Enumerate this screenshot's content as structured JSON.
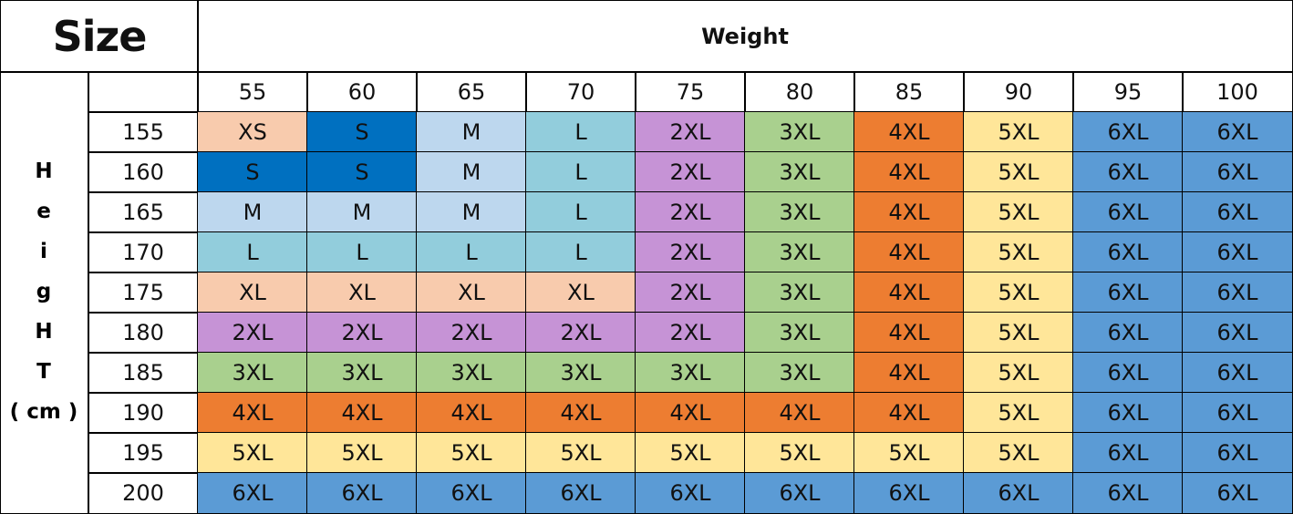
{
  "header": {
    "title": "Size",
    "weight_label": "Weight"
  },
  "height_label": [
    "H",
    "e",
    "i",
    "g",
    "H",
    "T",
    "( cm )"
  ],
  "size_colors": {
    "XS": "#f8cbad",
    "S": "#0070c0",
    "M": "#bdd7ee",
    "L": "#92cddc",
    "XL": "#f8cbad",
    "2XL": "#c693d6",
    "3XL": "#a9d08e",
    "4XL": "#ed7d31",
    "5XL": "#ffe699",
    "6XL": "#5b9bd5"
  },
  "table": {
    "weights": [
      55,
      60,
      65,
      70,
      75,
      80,
      85,
      90,
      95,
      100
    ],
    "rows": [
      {
        "height": 155,
        "sizes": [
          "XS",
          "S",
          "M",
          "L",
          "2XL",
          "3XL",
          "4XL",
          "5XL",
          "6XL",
          "6XL"
        ]
      },
      {
        "height": 160,
        "sizes": [
          "S",
          "S",
          "M",
          "L",
          "2XL",
          "3XL",
          "4XL",
          "5XL",
          "6XL",
          "6XL"
        ]
      },
      {
        "height": 165,
        "sizes": [
          "M",
          "M",
          "M",
          "L",
          "2XL",
          "3XL",
          "4XL",
          "5XL",
          "6XL",
          "6XL"
        ]
      },
      {
        "height": 170,
        "sizes": [
          "L",
          "L",
          "L",
          "L",
          "2XL",
          "3XL",
          "4XL",
          "5XL",
          "6XL",
          "6XL"
        ]
      },
      {
        "height": 175,
        "sizes": [
          "XL",
          "XL",
          "XL",
          "XL",
          "2XL",
          "3XL",
          "4XL",
          "5XL",
          "6XL",
          "6XL"
        ]
      },
      {
        "height": 180,
        "sizes": [
          "2XL",
          "2XL",
          "2XL",
          "2XL",
          "2XL",
          "3XL",
          "4XL",
          "5XL",
          "6XL",
          "6XL"
        ]
      },
      {
        "height": 185,
        "sizes": [
          "3XL",
          "3XL",
          "3XL",
          "3XL",
          "3XL",
          "3XL",
          "4XL",
          "5XL",
          "6XL",
          "6XL"
        ]
      },
      {
        "height": 190,
        "sizes": [
          "4XL",
          "4XL",
          "4XL",
          "4XL",
          "4XL",
          "4XL",
          "4XL",
          "5XL",
          "6XL",
          "6XL"
        ]
      },
      {
        "height": 195,
        "sizes": [
          "5XL",
          "5XL",
          "5XL",
          "5XL",
          "5XL",
          "5XL",
          "5XL",
          "5XL",
          "6XL",
          "6XL"
        ]
      },
      {
        "height": 200,
        "sizes": [
          "6XL",
          "6XL",
          "6XL",
          "6XL",
          "6XL",
          "6XL",
          "6XL",
          "6XL",
          "6XL",
          "6XL"
        ]
      }
    ]
  }
}
